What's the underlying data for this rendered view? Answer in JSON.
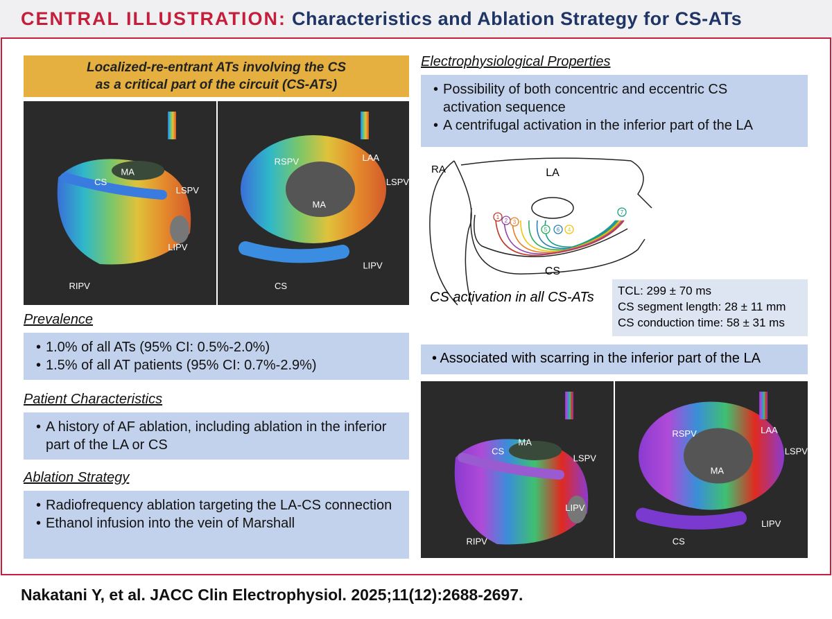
{
  "header": {
    "label": "CENTRAL ILLUSTRATION:",
    "title": "Characteristics and Ablation Strategy for CS-ATs"
  },
  "banner": [
    "Localized-re-entrant ATs involving the CS",
    "as a critical part of the circuit (CS-ATs)"
  ],
  "activation_maps": {
    "left": [
      "MA",
      "CS",
      "LSPV",
      "LIPV",
      "RIPV"
    ],
    "right": [
      "RSPV",
      "LAA",
      "LSPV",
      "MA",
      "LIPV",
      "CS"
    ]
  },
  "sections": [
    {
      "heading": "Prevalence",
      "items": [
        "1.0% of all ATs (95% CI: 0.5%-2.0%)",
        "1.5% of all AT patients (95% CI: 0.7%-2.9%)"
      ]
    },
    {
      "heading": "Patient Characteristics",
      "items": [
        "A history of AF ablation, including ablation in the inferior part of the LA or CS"
      ]
    },
    {
      "heading": "Ablation Strategy",
      "items": [
        "Radiofrequency ablation targeting the LA-CS connection",
        "Ethanol infusion into the vein of Marshall"
      ]
    }
  ],
  "ep": {
    "heading": "Electrophysiological Properties",
    "items": [
      "Possibility of both concentric and eccentric CS activation sequence",
      "A centrifugal activation in the inferior part of the LA"
    ]
  },
  "diagram": {
    "labels": [
      "RA",
      "LA",
      "CS"
    ],
    "markers": [
      "1",
      "2",
      "3",
      "4",
      "5",
      "6",
      "7"
    ],
    "caption": "CS activation in all CS-ATs"
  },
  "stats": [
    "TCL: 299 ± 70 ms",
    "CS segment length: 28 ± 11 mm",
    "CS conduction time: 58 ± 31 ms"
  ],
  "scarring": "Associated with scarring in the inferior part of the LA",
  "voltage_maps": {
    "left": [
      "MA",
      "CS",
      "LSPV",
      "LIPV",
      "RIPV"
    ],
    "right": [
      "RSPV",
      "LAA",
      "LSPV",
      "MA",
      "LIPV",
      "CS"
    ]
  },
  "citation": "Nakatani Y, et al. JACC Clin Electrophysiol. 2025;11(12):2688-2697."
}
